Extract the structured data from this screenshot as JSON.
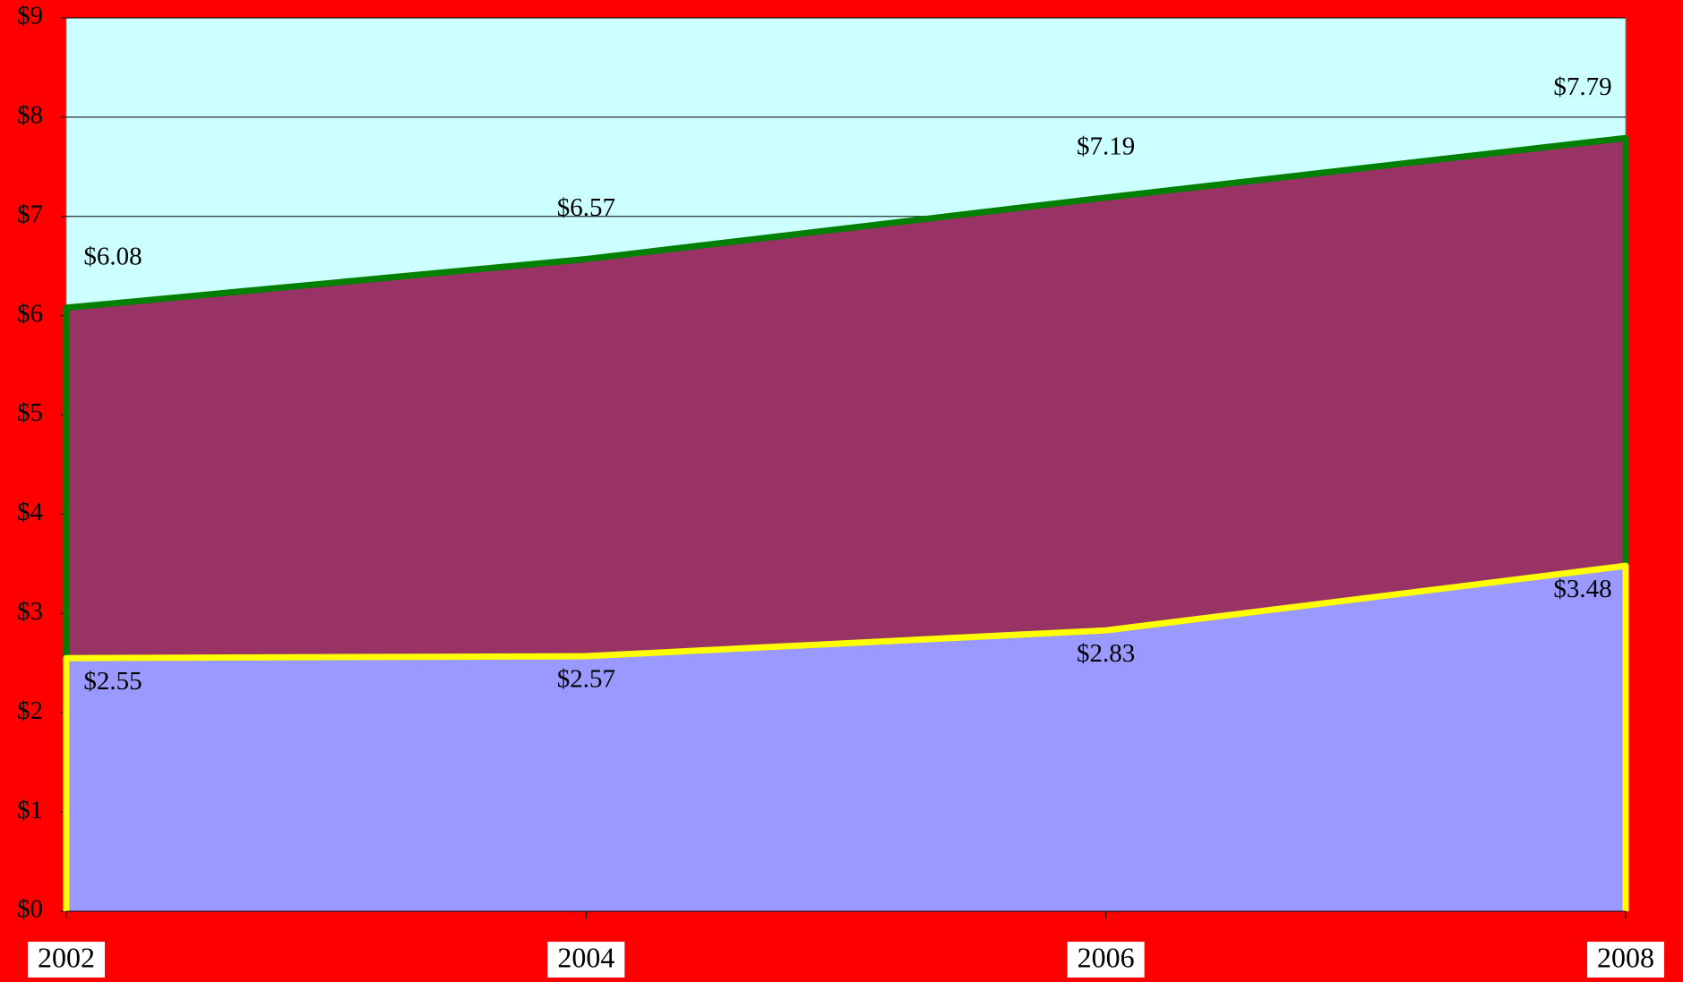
{
  "chart_data": {
    "type": "area",
    "categories": [
      "2002",
      "2004",
      "2006",
      "2008"
    ],
    "series": [
      {
        "color": "#993366",
        "line_color": "#008000",
        "values": [
          6.08,
          6.57,
          7.19,
          7.79
        ],
        "value_labels": [
          "$6.08",
          "$6.57",
          "$7.19",
          "$7.79"
        ]
      },
      {
        "color": "#9999ff",
        "line_color": "#ffff00",
        "values": [
          2.55,
          2.57,
          2.83,
          3.48
        ],
        "value_labels": [
          "$2.55",
          "$2.57",
          "$2.83",
          "$3.48"
        ]
      }
    ],
    "ylim": [
      0,
      9
    ],
    "yticks": [
      {
        "value": 0,
        "label": "$0"
      },
      {
        "value": 1,
        "label": "$1"
      },
      {
        "value": 2,
        "label": "$2"
      },
      {
        "value": 3,
        "label": "$3"
      },
      {
        "value": 4,
        "label": "$4"
      },
      {
        "value": 5,
        "label": "$5"
      },
      {
        "value": 6,
        "label": "$6"
      },
      {
        "value": 7,
        "label": "$7"
      },
      {
        "value": 8,
        "label": "$8"
      },
      {
        "value": 9,
        "label": "$9"
      }
    ],
    "grid": true,
    "background": "#ff0000",
    "plot_background": "#ccffff"
  }
}
